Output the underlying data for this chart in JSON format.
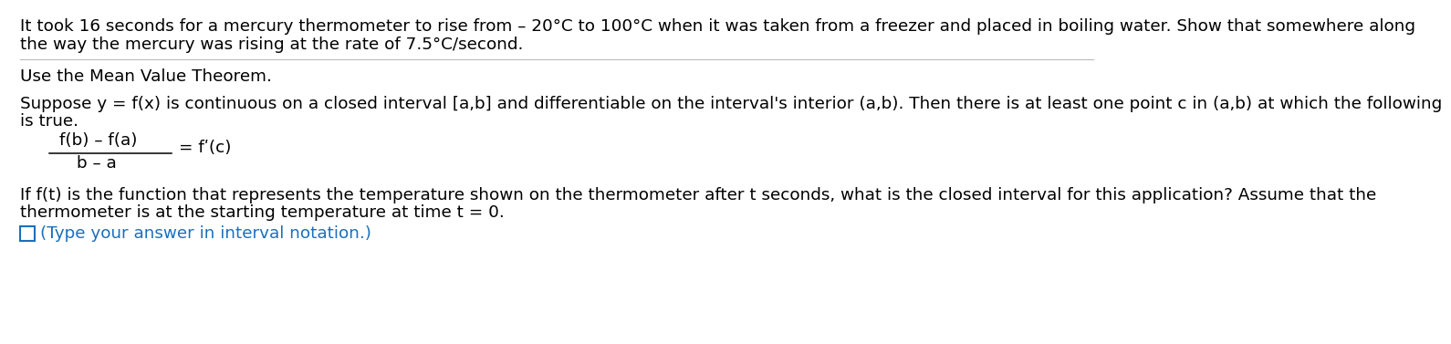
{
  "bg_color": "#ffffff",
  "text_color": "#000000",
  "blue_color": "#1a6fbd",
  "line_color": "#bbbbbb",
  "line1": "It took 16 seconds for a mercury thermometer to rise from – 20°C to 100°C when it was taken from a freezer and placed in boiling water. Show that somewhere along",
  "line2": "the way the mercury was rising at the rate of 7.5°C/second.",
  "section2": "Use the Mean Value Theorem.",
  "section3_line1": "Suppose y = f(x) is continuous on a closed interval [a,b] and differentiable on the interval's interior (a,b). Then there is at least one point c in (a,b) at which the following",
  "section3_line2": "is true.",
  "formula_num": "f(b) – f(a)",
  "formula_den": "b – a",
  "formula_rhs": "= fʹ(c)",
  "section4_line1": "If f(t) is the function that represents the temperature shown on the thermometer after t seconds, what is the closed interval for this application? Assume that the",
  "section4_line2": "thermometer is at the starting temperature at time t = 0.",
  "answer_prompt": "(Type your answer in interval notation.)",
  "main_fontsize": 13.2,
  "formula_fontsize": 13.2
}
